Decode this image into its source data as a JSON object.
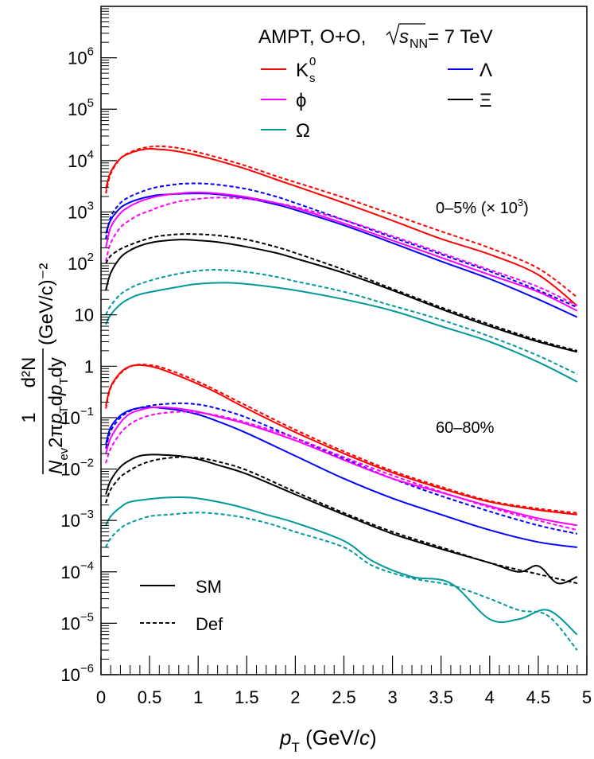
{
  "chart_data": {
    "type": "line",
    "title": "AMPT, O+O, √sNN = 7 TeV",
    "title_parts": {
      "prefix": "AMPT, O+O, ",
      "s": "s",
      "nn": "NN",
      "suffix": " = 7 TeV"
    },
    "xlabel": "pT (GeV/c)",
    "xlabel_parts": {
      "p": "p",
      "T": "T",
      "rest": " (GeV/",
      "c": "c",
      "close": ")"
    },
    "ylabel": "1/(Nev 2π pT dpT dy) d²N (GeV/c)^-2",
    "ylabel_parts": {
      "one": "1",
      "d2n": "d²N",
      "den": "Nev2πpTdpTdy",
      "unit": "(GeV/c)⁻²"
    },
    "xlim": [
      0,
      5
    ],
    "ylim_log10": [
      -6,
      7
    ],
    "y_scale": "log",
    "x_ticks": [
      0,
      0.5,
      1,
      1.5,
      2,
      2.5,
      3,
      3.5,
      4,
      4.5,
      5
    ],
    "x_tick_labels": [
      "0",
      "0.5",
      "1",
      "1.5",
      "2",
      "2.5",
      "3",
      "3.5",
      "4",
      "4.5",
      "5"
    ],
    "y_ticks_log10": [
      -6,
      -5,
      -4,
      -3,
      -2,
      -1,
      0,
      1,
      2,
      3,
      4,
      5,
      6
    ],
    "y_tick_labels": [
      {
        "base": "10",
        "exp": "−6"
      },
      {
        "base": "10",
        "exp": "−5"
      },
      {
        "base": "10",
        "exp": "−4"
      },
      {
        "base": "10",
        "exp": "−3"
      },
      {
        "base": "10",
        "exp": "−2"
      },
      {
        "base": "10",
        "exp": "−1"
      },
      {
        "base": "1",
        "exp": ""
      },
      {
        "base": "10",
        "exp": ""
      },
      {
        "base": "10",
        "exp": "2"
      },
      {
        "base": "10",
        "exp": "3"
      },
      {
        "base": "10",
        "exp": "4"
      },
      {
        "base": "10",
        "exp": "5"
      },
      {
        "base": "10",
        "exp": "6"
      }
    ],
    "legend_particles": [
      {
        "name": "K0s",
        "label": "K",
        "sup": "0",
        "sub": "s",
        "color": "#ff0000"
      },
      {
        "name": "Lambda",
        "label": "Λ",
        "color": "#0000ff"
      },
      {
        "name": "phi",
        "label": "ϕ",
        "color": "#ff00ff"
      },
      {
        "name": "Xi",
        "label": "Ξ",
        "color": "#000000"
      },
      {
        "name": "Omega",
        "label": "Ω",
        "color": "#009999"
      }
    ],
    "legend_styles": [
      {
        "name": "SM",
        "label": "SM",
        "dash": "solid"
      },
      {
        "name": "Def",
        "label": "Def",
        "dash": "dashed"
      }
    ],
    "annotations": [
      {
        "name": "central",
        "text": "0–5% (× 10",
        "sup": "3",
        "close": ")"
      },
      {
        "name": "peripheral",
        "text": "60–80%"
      }
    ],
    "series": [
      {
        "name": "K0s 0-5% SM",
        "color": "#ff0000",
        "dash": "solid",
        "x": [
          0.05,
          0.1,
          0.2,
          0.3,
          0.4,
          0.5,
          0.6,
          0.7,
          0.8,
          1,
          1.2,
          1.5,
          1.8,
          2,
          2.5,
          3,
          3.5,
          4,
          4.5,
          4.9
        ],
        "y": [
          2800,
          6000,
          11000,
          14000,
          16000,
          17000,
          16500,
          16000,
          15000,
          12500,
          10000,
          6800,
          4300,
          3200,
          1500,
          680,
          300,
          150,
          60,
          15
        ]
      },
      {
        "name": "K0s 0-5% Def",
        "color": "#ff0000",
        "dash": "dashed",
        "x": [
          0.05,
          0.1,
          0.2,
          0.3,
          0.4,
          0.5,
          0.6,
          0.7,
          0.8,
          1,
          1.2,
          1.5,
          1.8,
          2,
          2.5,
          3,
          3.5,
          4,
          4.5,
          4.9
        ],
        "y": [
          2300,
          5500,
          11000,
          14500,
          17000,
          18500,
          19000,
          18500,
          17500,
          14500,
          11500,
          7800,
          5000,
          3800,
          1900,
          900,
          420,
          200,
          80,
          22
        ]
      },
      {
        "name": "Lambda 0-5% SM",
        "color": "#0000ff",
        "dash": "solid",
        "x": [
          0.05,
          0.1,
          0.2,
          0.3,
          0.4,
          0.5,
          0.6,
          0.8,
          1,
          1.2,
          1.5,
          1.8,
          2,
          2.5,
          3,
          3.5,
          4,
          4.5,
          4.9
        ],
        "y": [
          380,
          700,
          1200,
          1550,
          1800,
          2000,
          2150,
          2250,
          2300,
          2200,
          1850,
          1400,
          1100,
          550,
          250,
          110,
          50,
          20,
          9
        ]
      },
      {
        "name": "Lambda 0-5% Def",
        "color": "#0000ff",
        "dash": "dashed",
        "x": [
          0.05,
          0.1,
          0.2,
          0.3,
          0.4,
          0.5,
          0.6,
          0.8,
          1,
          1.2,
          1.5,
          1.8,
          2,
          2.5,
          3,
          3.5,
          4,
          4.5,
          4.9
        ],
        "y": [
          300,
          800,
          1500,
          2000,
          2400,
          2800,
          3100,
          3500,
          3600,
          3400,
          2800,
          2000,
          1500,
          700,
          320,
          150,
          70,
          30,
          14
        ]
      },
      {
        "name": "phi 0-5% SM",
        "color": "#ff00ff",
        "dash": "solid",
        "x": [
          0.05,
          0.1,
          0.2,
          0.3,
          0.4,
          0.5,
          0.6,
          0.8,
          1,
          1.2,
          1.5,
          1.8,
          2,
          2.5,
          3,
          3.5,
          4,
          4.5,
          4.9
        ],
        "y": [
          200,
          500,
          950,
          1300,
          1600,
          1850,
          2050,
          2300,
          2400,
          2300,
          1950,
          1500,
          1200,
          600,
          280,
          130,
          60,
          28,
          12
        ]
      },
      {
        "name": "phi 0-5% Def",
        "color": "#ff00ff",
        "dash": "dashed",
        "x": [
          0.05,
          0.1,
          0.2,
          0.3,
          0.4,
          0.5,
          0.6,
          0.8,
          1,
          1.2,
          1.5,
          1.8,
          2,
          2.5,
          3,
          3.5,
          4,
          4.5,
          4.9
        ],
        "y": [
          110,
          250,
          500,
          700,
          900,
          1050,
          1250,
          1600,
          1800,
          1900,
          1800,
          1500,
          1250,
          700,
          340,
          160,
          75,
          35,
          15
        ]
      },
      {
        "name": "Xi 0-5% SM",
        "color": "#000000",
        "dash": "solid",
        "x": [
          0.05,
          0.1,
          0.2,
          0.3,
          0.4,
          0.5,
          0.6,
          0.8,
          1,
          1.2,
          1.5,
          1.8,
          2,
          2.5,
          3,
          3.5,
          4,
          4.5,
          4.9
        ],
        "y": [
          30,
          65,
          130,
          180,
          220,
          250,
          270,
          290,
          280,
          260,
          210,
          160,
          125,
          65,
          30,
          13,
          6,
          3,
          1.9
        ]
      },
      {
        "name": "Xi 0-5% Def",
        "color": "#000000",
        "dash": "dashed",
        "x": [
          0.05,
          0.1,
          0.2,
          0.3,
          0.4,
          0.5,
          0.6,
          0.8,
          1,
          1.2,
          1.5,
          1.8,
          2,
          2.5,
          3,
          3.5,
          4,
          4.5,
          4.9
        ],
        "y": [
          100,
          140,
          190,
          230,
          270,
          310,
          340,
          370,
          370,
          350,
          290,
          210,
          160,
          75,
          32,
          14,
          6.5,
          3.2,
          2
        ]
      },
      {
        "name": "Omega 0-5% SM",
        "color": "#009999",
        "dash": "solid",
        "x": [
          0.05,
          0.1,
          0.2,
          0.3,
          0.4,
          0.6,
          0.8,
          1,
          1.3,
          1.6,
          2,
          2.5,
          3,
          3.5,
          4,
          4.5,
          4.9
        ],
        "y": [
          6.5,
          10,
          16,
          21,
          25,
          30,
          35,
          40,
          42,
          38,
          30,
          20,
          12,
          6,
          3,
          1.2,
          0.5
        ]
      },
      {
        "name": "Omega 0-5% Def",
        "color": "#009999",
        "dash": "dashed",
        "x": [
          0.05,
          0.1,
          0.2,
          0.3,
          0.4,
          0.6,
          0.8,
          1,
          1.2,
          1.5,
          1.8,
          2,
          2.5,
          3,
          3.5,
          4,
          4.5,
          4.9
        ],
        "y": [
          10,
          15,
          25,
          33,
          40,
          52,
          63,
          72,
          75,
          68,
          55,
          45,
          28,
          15,
          8,
          3.8,
          1.6,
          0.7
        ]
      },
      {
        "name": "K0s 60-80% SM",
        "color": "#ff0000",
        "dash": "solid",
        "x": [
          0.05,
          0.1,
          0.2,
          0.3,
          0.4,
          0.5,
          0.6,
          0.8,
          1,
          1.2,
          1.5,
          2,
          2.5,
          3,
          3.5,
          4,
          4.5,
          4.9
        ],
        "y": [
          0.17,
          0.4,
          0.75,
          1.0,
          1.05,
          1.0,
          0.9,
          0.65,
          0.45,
          0.3,
          0.15,
          0.052,
          0.02,
          0.0085,
          0.0042,
          0.0023,
          0.0016,
          0.0013
        ]
      },
      {
        "name": "K0s 60-80% Def",
        "color": "#ff0000",
        "dash": "dashed",
        "x": [
          0.05,
          0.1,
          0.2,
          0.3,
          0.4,
          0.5,
          0.6,
          0.8,
          1,
          1.2,
          1.5,
          2,
          2.5,
          3,
          3.5,
          4,
          4.5,
          4.9
        ],
        "y": [
          0.15,
          0.38,
          0.72,
          0.98,
          1.08,
          1.05,
          0.98,
          0.72,
          0.5,
          0.33,
          0.17,
          0.058,
          0.022,
          0.0092,
          0.0045,
          0.0024,
          0.0017,
          0.0014
        ]
      },
      {
        "name": "Lambda 60-80% SM",
        "color": "#0000ff",
        "dash": "solid",
        "x": [
          0.05,
          0.1,
          0.2,
          0.3,
          0.4,
          0.5,
          0.6,
          0.8,
          1,
          1.2,
          1.5,
          2,
          2.5,
          3,
          3.5,
          4,
          4.5,
          4.9
        ],
        "y": [
          0.03,
          0.065,
          0.11,
          0.14,
          0.155,
          0.16,
          0.155,
          0.14,
          0.115,
          0.085,
          0.05,
          0.018,
          0.0065,
          0.0027,
          0.0013,
          0.00065,
          0.00038,
          0.0003
        ]
      },
      {
        "name": "Lambda 60-80% Def",
        "color": "#0000ff",
        "dash": "dashed",
        "x": [
          0.05,
          0.1,
          0.2,
          0.3,
          0.4,
          0.5,
          0.6,
          0.8,
          1,
          1.2,
          1.5,
          2,
          2.5,
          3,
          3.5,
          4,
          4.5,
          4.9
        ],
        "y": [
          0.025,
          0.055,
          0.1,
          0.135,
          0.155,
          0.17,
          0.18,
          0.19,
          0.18,
          0.15,
          0.1,
          0.04,
          0.016,
          0.0065,
          0.003,
          0.0015,
          0.0008,
          0.00055
        ]
      },
      {
        "name": "phi 60-80% SM",
        "color": "#ff00ff",
        "dash": "solid",
        "x": [
          0.05,
          0.1,
          0.2,
          0.3,
          0.4,
          0.5,
          0.6,
          0.8,
          1,
          1.2,
          1.5,
          2,
          2.5,
          3,
          3.5,
          4,
          4.5,
          4.9
        ],
        "y": [
          0.02,
          0.04,
          0.08,
          0.12,
          0.14,
          0.155,
          0.16,
          0.15,
          0.13,
          0.105,
          0.075,
          0.036,
          0.015,
          0.0065,
          0.0035,
          0.0019,
          0.0011,
          0.0008
        ]
      },
      {
        "name": "phi 60-80% Def",
        "color": "#ff00ff",
        "dash": "dashed",
        "x": [
          0.05,
          0.1,
          0.2,
          0.3,
          0.4,
          0.5,
          0.6,
          0.8,
          1,
          1.2,
          1.5,
          2,
          2.5,
          3,
          3.5,
          4,
          4.5,
          4.9
        ],
        "y": [
          0.013,
          0.025,
          0.05,
          0.075,
          0.095,
          0.11,
          0.12,
          0.13,
          0.125,
          0.11,
          0.08,
          0.04,
          0.017,
          0.0075,
          0.0036,
          0.0018,
          0.001,
          0.00065
        ]
      },
      {
        "name": "Xi 60-80% SM",
        "color": "#000000",
        "dash": "solid",
        "x": [
          0.05,
          0.1,
          0.2,
          0.3,
          0.4,
          0.5,
          0.6,
          0.8,
          1,
          1.2,
          1.5,
          2,
          2.5,
          3,
          3.5,
          4,
          4.3,
          4.5,
          4.7,
          4.9
        ],
        "y": [
          0.0032,
          0.006,
          0.011,
          0.015,
          0.018,
          0.019,
          0.019,
          0.018,
          0.0155,
          0.012,
          0.008,
          0.0032,
          0.0013,
          0.00055,
          0.00028,
          0.00015,
          0.0001,
          0.00013,
          6e-05,
          8e-05
        ]
      },
      {
        "name": "Xi 60-80% Def",
        "color": "#000000",
        "dash": "dashed",
        "x": [
          0.05,
          0.1,
          0.2,
          0.3,
          0.4,
          0.5,
          0.6,
          0.8,
          1,
          1.2,
          1.5,
          2,
          2.5,
          3,
          3.5,
          4,
          4.5,
          4.9
        ],
        "y": [
          0.0022,
          0.004,
          0.007,
          0.0095,
          0.012,
          0.014,
          0.0155,
          0.017,
          0.0165,
          0.014,
          0.0095,
          0.0036,
          0.0014,
          0.0006,
          0.0003,
          0.00015,
          9e-05,
          6e-05
        ]
      },
      {
        "name": "Omega 60-80% SM",
        "color": "#009999",
        "dash": "solid",
        "x": [
          0.05,
          0.1,
          0.2,
          0.3,
          0.5,
          0.7,
          0.9,
          1.1,
          1.4,
          1.7,
          2,
          2.5,
          2.8,
          3.2,
          3.6,
          4,
          4.3,
          4.6,
          4.9
        ],
        "y": [
          0.0008,
          0.0012,
          0.0018,
          0.0023,
          0.0026,
          0.0028,
          0.0028,
          0.0025,
          0.0019,
          0.0013,
          0.0009,
          0.0004,
          0.00016,
          8e-05,
          6e-05,
          1.2e-05,
          1.2e-05,
          1.8e-05,
          6e-06
        ]
      },
      {
        "name": "Omega 60-80% Def",
        "color": "#009999",
        "dash": "dashed",
        "x": [
          0.05,
          0.1,
          0.2,
          0.3,
          0.5,
          0.7,
          0.9,
          1.1,
          1.4,
          1.7,
          2,
          2.5,
          2.8,
          3.2,
          3.6,
          4,
          4.3,
          4.6,
          4.9
        ],
        "y": [
          0.0003,
          0.00045,
          0.0007,
          0.0009,
          0.0012,
          0.0013,
          0.0014,
          0.0014,
          0.0012,
          0.0009,
          0.0006,
          0.0003,
          0.00013,
          7.5e-05,
          5.5e-05,
          3e-05,
          1.8e-05,
          1.4e-05,
          3e-06
        ]
      }
    ]
  }
}
